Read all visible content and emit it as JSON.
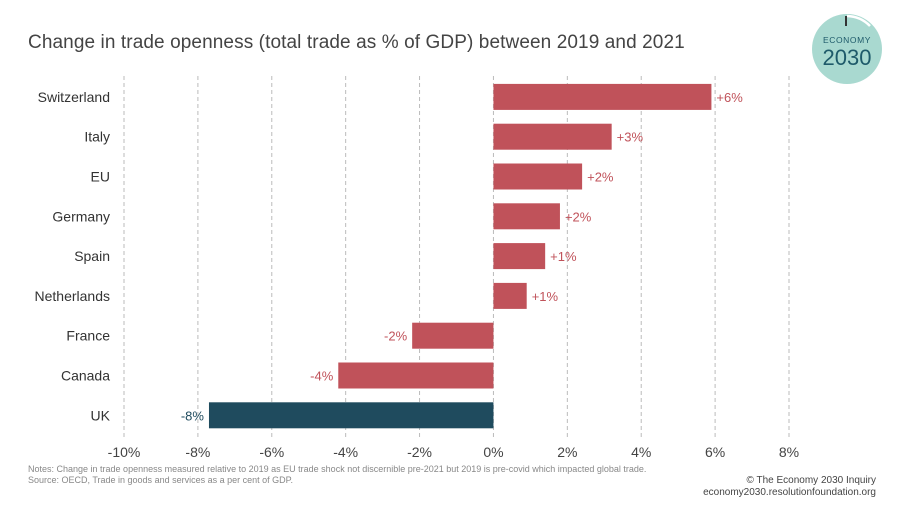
{
  "title": "Change in trade openness (total trade as % of GDP) between 2019 and 2021",
  "logo": {
    "line1": "ECONOMY",
    "line2": "2030"
  },
  "notes": {
    "line1": "Notes: Change in trade openness measured relative to 2019 as EU trade shock not discernible pre-2021 but 2019 is pre-covid which impacted global trade.",
    "line2": "Source: OECD, Trade in goods and services as a per cent of GDP."
  },
  "credit": {
    "line1": "© The Economy 2030 Inquiry",
    "line2": "economy2030.resolutionfoundation.org"
  },
  "colors": {
    "positive": "#c0525a",
    "negative": "#c0525a",
    "highlight": "#1f4b5e",
    "grid": "#bbbbbb",
    "logo": "#a9d9d0"
  },
  "chart_data": {
    "type": "bar",
    "orientation": "horizontal",
    "title": "Change in trade openness (total trade as % of GDP) between 2019 and 2021",
    "xlabel": "",
    "ylabel": "",
    "xlim": [
      -10,
      8
    ],
    "xticks": [
      -10,
      -8,
      -6,
      -4,
      -2,
      0,
      2,
      4,
      6,
      8
    ],
    "xtick_labels": [
      "-10%",
      "-8%",
      "-6%",
      "-4%",
      "-2%",
      "0%",
      "2%",
      "4%",
      "6%",
      "8%"
    ],
    "grid": "vertical dashed",
    "categories": [
      "Switzerland",
      "Italy",
      "EU",
      "Germany",
      "Spain",
      "Netherlands",
      "France",
      "Canada",
      "UK"
    ],
    "values": [
      5.9,
      3.2,
      2.4,
      1.8,
      1.4,
      0.9,
      -2.2,
      -4.2,
      -7.7
    ],
    "labels": [
      "+6%",
      "+3%",
      "+2%",
      "+2%",
      "+1%",
      "+1%",
      "-2%",
      "-4%",
      "-8%"
    ],
    "highlight": "UK"
  }
}
